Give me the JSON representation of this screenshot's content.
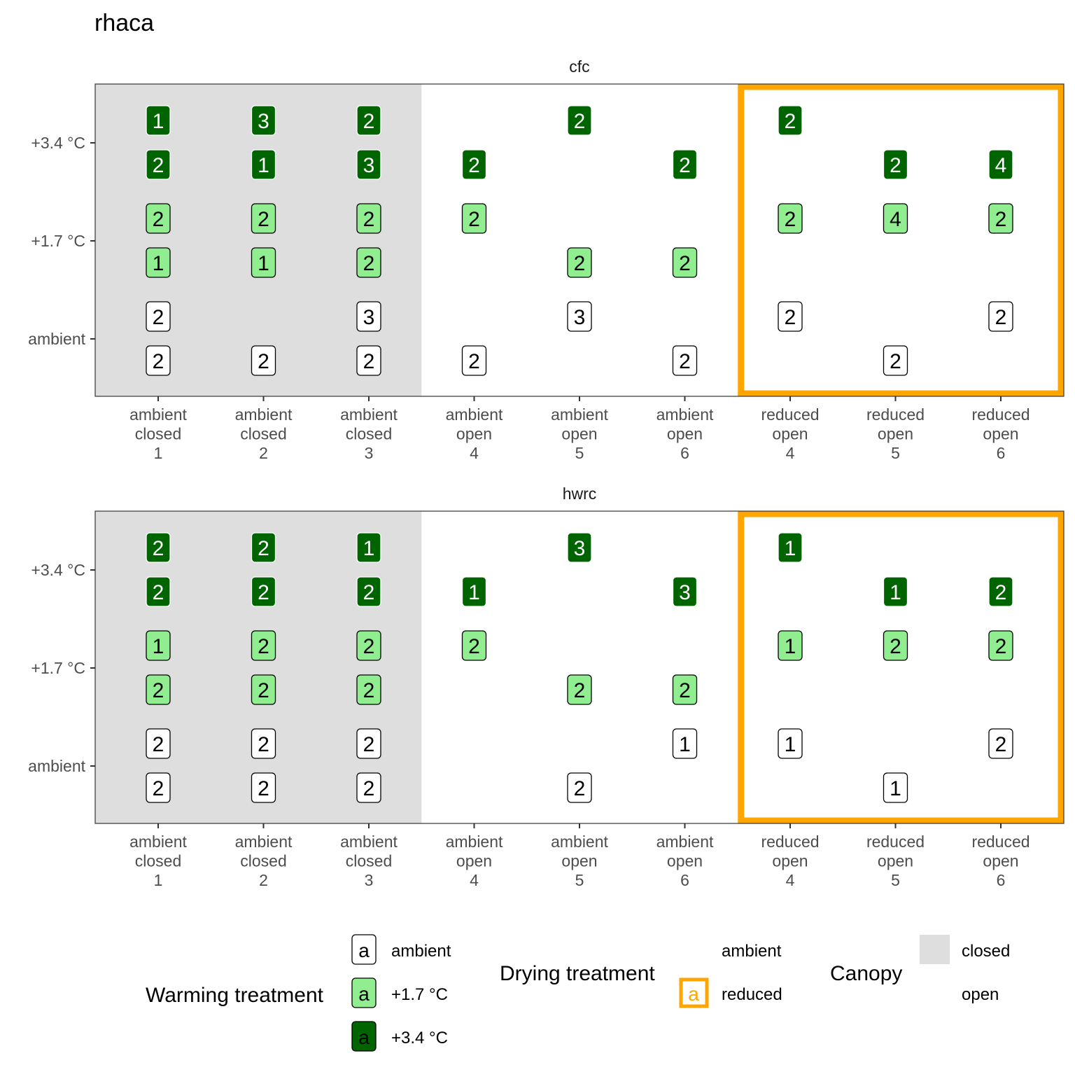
{
  "chart_data": {
    "type": "table",
    "title": "rhaca",
    "x_categories": [
      [
        "ambient",
        "closed",
        "1"
      ],
      [
        "ambient",
        "closed",
        "2"
      ],
      [
        "ambient",
        "closed",
        "3"
      ],
      [
        "ambient",
        "open",
        "4"
      ],
      [
        "ambient",
        "open",
        "5"
      ],
      [
        "ambient",
        "open",
        "6"
      ],
      [
        "reduced",
        "open",
        "4"
      ],
      [
        "reduced",
        "open",
        "5"
      ],
      [
        "reduced",
        "open",
        "6"
      ]
    ],
    "canopy": [
      "closed",
      "closed",
      "closed",
      "open",
      "open",
      "open",
      "open",
      "open",
      "open"
    ],
    "drying": [
      "ambient",
      "ambient",
      "ambient",
      "ambient",
      "ambient",
      "ambient",
      "reduced",
      "reduced",
      "reduced"
    ],
    "y_levels": [
      "+3.4 °C",
      "+1.7 °C",
      "ambient"
    ],
    "warming_keys": [
      "w34",
      "w17",
      "amb"
    ],
    "note": "each cell: [upper replicate, lower replicate] count; null = none",
    "panels": [
      {
        "name": "cfc",
        "cells": [
          {
            "w34": [
              1,
              2
            ],
            "w17": [
              2,
              1
            ],
            "amb": [
              2,
              2
            ]
          },
          {
            "w34": [
              3,
              1
            ],
            "w17": [
              2,
              1
            ],
            "amb": [
              null,
              2
            ]
          },
          {
            "w34": [
              2,
              3
            ],
            "w17": [
              2,
              2
            ],
            "amb": [
              3,
              2
            ]
          },
          {
            "w34": [
              null,
              2
            ],
            "w17": [
              2,
              null
            ],
            "amb": [
              null,
              2
            ]
          },
          {
            "w34": [
              2,
              null
            ],
            "w17": [
              null,
              2
            ],
            "amb": [
              3,
              null
            ]
          },
          {
            "w34": [
              null,
              2
            ],
            "w17": [
              null,
              2
            ],
            "amb": [
              null,
              2
            ]
          },
          {
            "w34": [
              2,
              null
            ],
            "w17": [
              2,
              null
            ],
            "amb": [
              2,
              null
            ]
          },
          {
            "w34": [
              null,
              2
            ],
            "w17": [
              4,
              null
            ],
            "amb": [
              null,
              2
            ]
          },
          {
            "w34": [
              null,
              4
            ],
            "w17": [
              2,
              null
            ],
            "amb": [
              2,
              null
            ]
          }
        ]
      },
      {
        "name": "hwrc",
        "cells": [
          {
            "w34": [
              2,
              2
            ],
            "w17": [
              1,
              2
            ],
            "amb": [
              2,
              2
            ]
          },
          {
            "w34": [
              2,
              2
            ],
            "w17": [
              2,
              2
            ],
            "amb": [
              2,
              2
            ]
          },
          {
            "w34": [
              1,
              2
            ],
            "w17": [
              2,
              2
            ],
            "amb": [
              2,
              2
            ]
          },
          {
            "w34": [
              null,
              1
            ],
            "w17": [
              2,
              null
            ],
            "amb": [
              null,
              null
            ]
          },
          {
            "w34": [
              3,
              null
            ],
            "w17": [
              null,
              2
            ],
            "amb": [
              null,
              2
            ]
          },
          {
            "w34": [
              null,
              3
            ],
            "w17": [
              null,
              2
            ],
            "amb": [
              1,
              null
            ]
          },
          {
            "w34": [
              1,
              null
            ],
            "w17": [
              1,
              null
            ],
            "amb": [
              1,
              null
            ]
          },
          {
            "w34": [
              null,
              1
            ],
            "w17": [
              2,
              null
            ],
            "amb": [
              null,
              1
            ]
          },
          {
            "w34": [
              null,
              2
            ],
            "w17": [
              2,
              null
            ],
            "amb": [
              2,
              null
            ]
          }
        ]
      }
    ],
    "colors": {
      "amb": "#ffffff",
      "w17": "#90ee90",
      "w34": "#006400",
      "reduced": "#ffa500",
      "closed": "#dedede"
    },
    "legend": {
      "placement": "bottom",
      "warming": {
        "title": "Warming treatment",
        "key_glyph": "a",
        "items": [
          "ambient",
          "+1.7 °C",
          "+3.4 °C"
        ]
      },
      "drying": {
        "title": "Drying treatment",
        "key_glyph": "a",
        "items": [
          "ambient",
          "reduced"
        ]
      },
      "canopy": {
        "title": "Canopy",
        "items": [
          "closed",
          "open"
        ]
      }
    }
  }
}
